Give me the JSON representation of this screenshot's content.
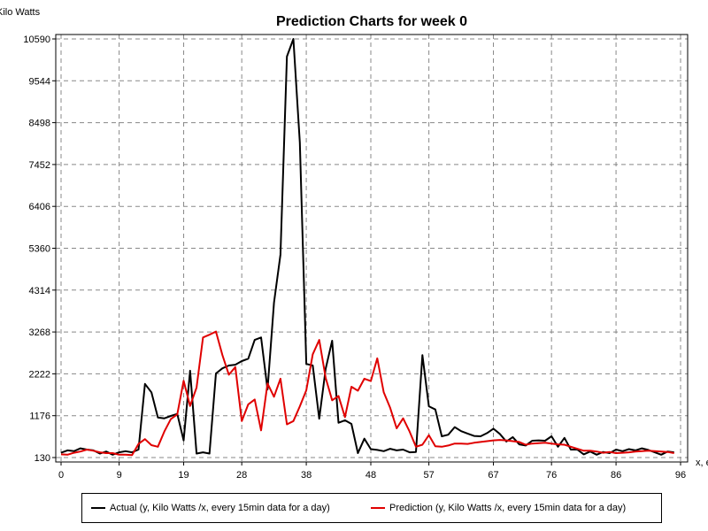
{
  "chart_data": {
    "type": "line",
    "title": "Prediction Charts for week 0",
    "ylabel": "Kilo Watts",
    "xlabel": "x, e",
    "xlim": [
      0,
      96
    ],
    "ylim": [
      130,
      10590
    ],
    "yticks": [
      130,
      1176,
      2222,
      3268,
      4314,
      5360,
      6406,
      7452,
      8498,
      9544,
      10590
    ],
    "xticks": [
      0,
      9,
      19,
      28,
      38,
      48,
      57,
      67,
      76,
      86,
      96
    ],
    "grid": true,
    "legend_position": "bottom",
    "x": [
      0,
      1,
      2,
      3,
      4,
      5,
      6,
      7,
      8,
      9,
      10,
      11,
      12,
      13,
      14,
      15,
      16,
      17,
      18,
      19,
      20,
      21,
      22,
      23,
      24,
      25,
      26,
      27,
      28,
      29,
      30,
      31,
      32,
      33,
      34,
      35,
      36,
      37,
      38,
      39,
      40,
      41,
      42,
      43,
      44,
      45,
      46,
      47,
      48,
      49,
      50,
      51,
      52,
      53,
      54,
      55,
      56,
      57,
      58,
      59,
      60,
      61,
      62,
      63,
      64,
      65,
      66,
      67,
      68,
      69,
      70,
      71,
      72,
      73,
      74,
      75,
      76,
      77,
      78,
      79,
      80,
      81,
      82,
      83,
      84,
      85,
      86,
      87,
      88,
      89,
      90,
      91,
      92,
      93,
      94,
      95
    ],
    "series": [
      {
        "name": "Actual (y, Kilo Watts /x, every 15min data for a day)",
        "color": "#000000",
        "values": [
          250,
          310,
          290,
          360,
          330,
          310,
          230,
          280,
          200,
          260,
          290,
          260,
          330,
          1970,
          1760,
          1130,
          1110,
          1170,
          1220,
          560,
          2300,
          230,
          260,
          230,
          2230,
          2360,
          2430,
          2450,
          2540,
          2600,
          3070,
          3130,
          1830,
          4000,
          5200,
          10150,
          10590,
          8000,
          2470,
          2430,
          1100,
          2350,
          3050,
          1000,
          1060,
          970,
          240,
          600,
          340,
          320,
          290,
          350,
          310,
          330,
          260,
          270,
          2690,
          1410,
          1330,
          660,
          700,
          890,
          790,
          730,
          670,
          660,
          740,
          850,
          720,
          530,
          640,
          460,
          430,
          550,
          560,
          550,
          660,
          400,
          620,
          330,
          330,
          210,
          280,
          200,
          270,
          240,
          330,
          290,
          340,
          310,
          360,
          320,
          260,
          200,
          280,
          260
        ]
      },
      {
        "name": "Prediction (y, Kilo Watts /x, every 15min data for a day)",
        "color": "#e00000",
        "values": [
          210,
          200,
          250,
          280,
          330,
          300,
          260,
          240,
          240,
          200,
          200,
          190,
          470,
          590,
          440,
          400,
          780,
          1090,
          1210,
          2050,
          1420,
          1880,
          3130,
          3200,
          3280,
          2690,
          2200,
          2390,
          1040,
          1460,
          1580,
          810,
          1980,
          1650,
          2100,
          960,
          1040,
          1410,
          1810,
          2710,
          3070,
          2120,
          1560,
          1670,
          1140,
          1900,
          1800,
          2100,
          2040,
          2610,
          1760,
          1370,
          860,
          1110,
          780,
          400,
          450,
          690,
          410,
          400,
          430,
          480,
          480,
          470,
          500,
          520,
          540,
          560,
          570,
          560,
          540,
          520,
          450,
          480,
          490,
          500,
          480,
          460,
          450,
          400,
          350,
          300,
          300,
          280,
          250,
          270,
          240,
          250,
          260,
          280,
          290,
          300,
          290,
          280,
          270,
          240
        ]
      }
    ]
  }
}
